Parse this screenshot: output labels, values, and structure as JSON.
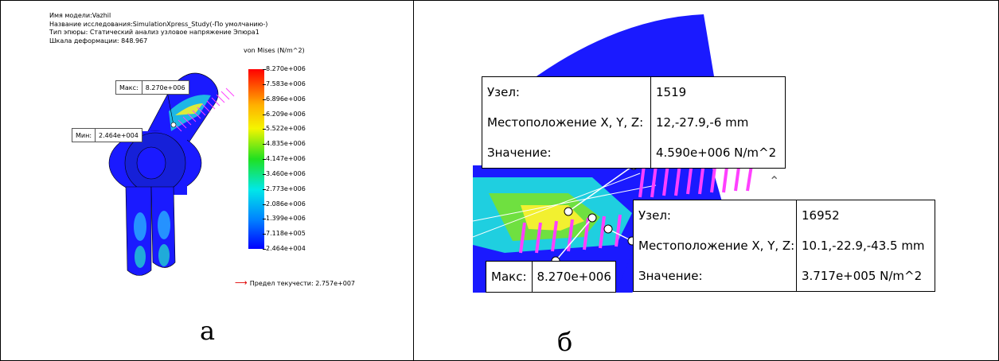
{
  "panel_a": {
    "info_lines": [
      "Имя модели:Vazhil",
      "Название исследования:SimulationXpress_Study(-По умолчанию-)",
      "Тип эпюры: Статический анализ узловое напряжение Эпюра1",
      "Шкала деформации: 848.967"
    ],
    "legend_title": "von Mises (N/m^2)",
    "legend_ticks": [
      "8.270e+006",
      "7.583e+006",
      "6.896e+006",
      "6.209e+006",
      "5.522e+006",
      "4.835e+006",
      "4.147e+006",
      "3.460e+006",
      "2.773e+006",
      "2.086e+006",
      "1.399e+006",
      "7.118e+005",
      "2.464e+004"
    ],
    "max_probe": {
      "label": "Макс:",
      "value": "8.270e+006"
    },
    "min_probe": {
      "label": "Мин:",
      "value": "2.464e+004"
    },
    "yield_text": "Предел текучести: 2.757e+007",
    "caption": "а",
    "colors": {
      "blue": "#1a1aff",
      "magenta": "#ff40ff",
      "arrow": "#e00000"
    }
  },
  "panel_b": {
    "node1": {
      "rows": [
        {
          "key": "Узел:",
          "value": "1519"
        },
        {
          "key": "Местоположение X, Y, Z:",
          "value": "12,-27.9,-6 mm"
        },
        {
          "key": "Значение:",
          "value": "4.590e+006 N/m^2"
        }
      ]
    },
    "node2": {
      "rows": [
        {
          "key": "Узел:",
          "value": "16952"
        },
        {
          "key": "Местоположение X, Y, Z:",
          "value": "10.1,-22.9,-43.5 mm"
        },
        {
          "key": "Значение:",
          "value": "3.717e+005 N/m^2"
        }
      ]
    },
    "max_probe": {
      "label": "Макс:",
      "value": "8.270e+006"
    },
    "caption": "б"
  }
}
